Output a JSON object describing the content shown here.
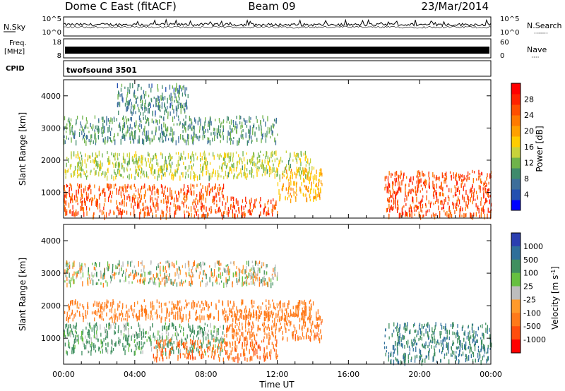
{
  "header": {
    "title": "Dome C East (fitACF)",
    "beam": "Beam 09",
    "date": "23/Mar/2014"
  },
  "strips": {
    "noise": {
      "left_label": "N.Sky",
      "right_label": "N.Search",
      "right_dots": "·······",
      "left_ticks": [
        "10^5",
        "10^0"
      ],
      "right_ticks": [
        "10^5",
        "10^0"
      ]
    },
    "freq": {
      "left_label_top": "Freq.",
      "left_label_bottom": "[MHz]",
      "right_label": "Nave",
      "right_dots": "····",
      "left_ticks": [
        "18",
        "8"
      ],
      "right_ticks": [
        "60",
        "0"
      ]
    },
    "cpid": {
      "label": "CPID",
      "program": "twofsound 3501"
    }
  },
  "chart_data": [
    {
      "type": "heatmap",
      "name": "power",
      "ylabel": "Slant Range [km]",
      "ylim": [
        200,
        4500
      ],
      "yticks": [
        1000,
        2000,
        3000,
        4000
      ],
      "xlim": [
        0,
        24
      ],
      "colorbar": {
        "label": "Power [dB]",
        "range": [
          0,
          32
        ],
        "ticks": [
          4,
          8,
          12,
          16,
          20,
          24,
          28
        ],
        "colors": [
          "#0000ff",
          "#2350b0",
          "#3d6e9a",
          "#3f8a6c",
          "#6fb34b",
          "#c8d23b",
          "#ffcc00",
          "#ffa000",
          "#ff7a00",
          "#ff4f00",
          "#ff2200",
          "#ff0000"
        ]
      },
      "approx_echo_regions": [
        {
          "t": [
            0,
            9
          ],
          "range_km": [
            300,
            1300
          ],
          "power_db": 26
        },
        {
          "t": [
            9,
            12
          ],
          "range_km": [
            300,
            900
          ],
          "power_db": 26
        },
        {
          "t": [
            12,
            14.5
          ],
          "range_km": [
            800,
            1800
          ],
          "power_db": 20
        },
        {
          "t": [
            18,
            24
          ],
          "range_km": [
            300,
            1700
          ],
          "power_db": 27
        },
        {
          "t": [
            0,
            14
          ],
          "range_km": [
            1500,
            2300
          ],
          "power_db": 14
        },
        {
          "t": [
            0,
            12
          ],
          "range_km": [
            2600,
            3400
          ],
          "power_db": 9
        },
        {
          "t": [
            3,
            7
          ],
          "range_km": [
            3500,
            4400
          ],
          "power_db": 8
        }
      ]
    },
    {
      "type": "heatmap",
      "name": "velocity",
      "ylabel": "Slant Range [km]",
      "ylim": [
        200,
        4500
      ],
      "yticks": [
        1000,
        2000,
        3000,
        4000
      ],
      "xlim": [
        0,
        24
      ],
      "colorbar": {
        "label": "Velocity [m s^-1]",
        "ticks": [
          "1000",
          "500",
          "100",
          "25",
          "-25",
          "-100",
          "-500",
          "-1000"
        ],
        "colors": [
          "#2b3fb0",
          "#2f6f9a",
          "#3f8f5f",
          "#66c040",
          "#bdbdbd",
          "#ff9a2a",
          "#ff7a1a",
          "#ff4d0d",
          "#ff0000"
        ]
      },
      "approx_echo_regions": [
        {
          "t": [
            0,
            9
          ],
          "range_km": [
            600,
            1500
          ],
          "velocity": 100
        },
        {
          "t": [
            5,
            12
          ],
          "range_km": [
            400,
            1000
          ],
          "velocity": -250
        },
        {
          "t": [
            9,
            14.5
          ],
          "range_km": [
            1000,
            1900
          ],
          "velocity": -200
        },
        {
          "t": [
            18,
            24
          ],
          "range_km": [
            300,
            1500
          ],
          "velocity": 300
        },
        {
          "t": [
            0,
            14
          ],
          "range_km": [
            1600,
            2200
          ],
          "velocity": -150
        },
        {
          "t": [
            0,
            12
          ],
          "range_km": [
            2700,
            3400
          ],
          "velocity": 0
        }
      ]
    }
  ],
  "x_axis": {
    "label": "Time UT",
    "ticks": [
      "00:00",
      "04:00",
      "08:00",
      "12:00",
      "16:00",
      "20:00",
      "00:00"
    ]
  }
}
